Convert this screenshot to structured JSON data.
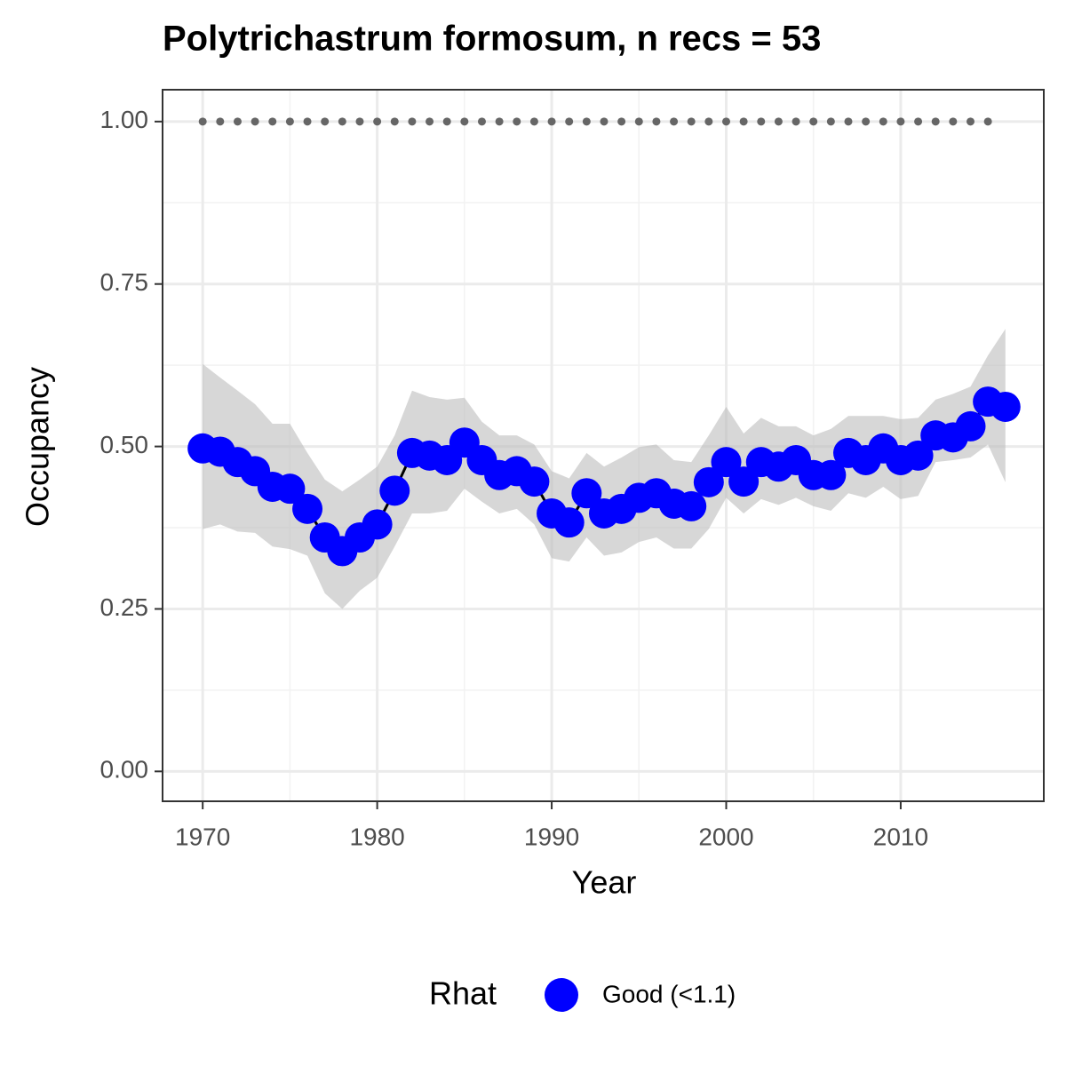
{
  "chart_data": {
    "type": "line",
    "title": "Polytrichastrum formosum, n recs = 53",
    "x_label": "Year",
    "y_label": "Occupancy",
    "x": [
      1970,
      1971,
      1972,
      1973,
      1974,
      1975,
      1976,
      1977,
      1978,
      1979,
      1980,
      1981,
      1982,
      1983,
      1984,
      1985,
      1986,
      1987,
      1988,
      1989,
      1990,
      1991,
      1992,
      1993,
      1994,
      1995,
      1996,
      1997,
      1998,
      1999,
      2000,
      2001,
      2002,
      2003,
      2004,
      2005,
      2006,
      2007,
      2008,
      2009,
      2010,
      2011,
      2012,
      2013,
      2014,
      2015,
      2016
    ],
    "values": [
      0.497,
      0.492,
      0.476,
      0.462,
      0.438,
      0.435,
      0.404,
      0.36,
      0.339,
      0.36,
      0.38,
      0.432,
      0.49,
      0.486,
      0.479,
      0.506,
      0.479,
      0.456,
      0.462,
      0.446,
      0.397,
      0.383,
      0.428,
      0.397,
      0.404,
      0.421,
      0.428,
      0.412,
      0.408,
      0.445,
      0.476,
      0.446,
      0.476,
      0.469,
      0.479,
      0.456,
      0.456,
      0.49,
      0.479,
      0.497,
      0.479,
      0.486,
      0.517,
      0.514,
      0.531,
      0.569,
      0.561
    ],
    "upper": [
      0.627,
      0.606,
      0.586,
      0.565,
      0.535,
      0.535,
      0.49,
      0.449,
      0.431,
      0.449,
      0.469,
      0.517,
      0.586,
      0.576,
      0.572,
      0.575,
      0.538,
      0.517,
      0.517,
      0.503,
      0.462,
      0.451,
      0.49,
      0.469,
      0.483,
      0.499,
      0.503,
      0.479,
      0.476,
      0.517,
      0.561,
      0.52,
      0.544,
      0.531,
      0.531,
      0.517,
      0.527,
      0.547,
      0.547,
      0.547,
      0.542,
      0.544,
      0.572,
      0.581,
      0.592,
      0.64,
      0.681
    ],
    "lower": [
      0.373,
      0.38,
      0.369,
      0.367,
      0.346,
      0.342,
      0.332,
      0.274,
      0.25,
      0.278,
      0.298,
      0.346,
      0.397,
      0.397,
      0.401,
      0.435,
      0.415,
      0.397,
      0.404,
      0.38,
      0.328,
      0.323,
      0.36,
      0.332,
      0.337,
      0.353,
      0.36,
      0.343,
      0.343,
      0.373,
      0.421,
      0.397,
      0.419,
      0.41,
      0.421,
      0.408,
      0.401,
      0.428,
      0.421,
      0.438,
      0.419,
      0.424,
      0.476,
      0.479,
      0.483,
      0.503,
      0.445
    ],
    "color": "#0000ff",
    "ribbon_color": "#bdbdbd",
    "rug_x": [
      1970,
      1971,
      1972,
      1973,
      1974,
      1975,
      1976,
      1977,
      1978,
      1979,
      1980,
      1981,
      1982,
      1983,
      1984,
      1985,
      1986,
      1987,
      1988,
      1989,
      1990,
      1991,
      1992,
      1993,
      1994,
      1995,
      1996,
      1997,
      1998,
      1999,
      2000,
      2001,
      2002,
      2003,
      2004,
      2005,
      2006,
      2007,
      2008,
      2009,
      2010,
      2011,
      2012,
      2013,
      2014,
      2015
    ],
    "rug_values": [
      1,
      1,
      1,
      1,
      1,
      1,
      1,
      1,
      1,
      1,
      1,
      1,
      1,
      1,
      1,
      1,
      1,
      1,
      1,
      1,
      1,
      1,
      1,
      1,
      1,
      1,
      1,
      1,
      1,
      1,
      1,
      1,
      1,
      1,
      1,
      1,
      1,
      1,
      1,
      1,
      1,
      1,
      1,
      1,
      1,
      1
    ],
    "rug_color": "#666666",
    "xlim": [
      1967.7,
      2018.2
    ],
    "xticks": [
      1970,
      1980,
      1990,
      2000,
      2010
    ],
    "ylim": [
      -0.046,
      1.049
    ],
    "yticks": [
      {
        "value": 0,
        "label": "0.00"
      },
      {
        "value": 0.25,
        "label": "0.25"
      },
      {
        "value": 0.5,
        "label": "0.50"
      },
      {
        "value": 0.75,
        "label": "0.75"
      },
      {
        "value": 1,
        "label": "1.00"
      }
    ],
    "grid": true,
    "legend": {
      "title": "Rhat",
      "labels": [
        "Good (<1.1)"
      ],
      "position": "bottom"
    }
  }
}
